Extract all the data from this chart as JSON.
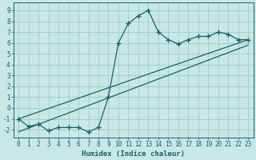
{
  "xlabel": "Humidex (Indice chaleur)",
  "background_color": "#c8e8e8",
  "grid_color": "#aacccc",
  "line_color": "#1a6060",
  "xlim": [
    -0.5,
    23.5
  ],
  "ylim": [
    -2.7,
    9.7
  ],
  "xticks": [
    0,
    1,
    2,
    3,
    4,
    5,
    6,
    7,
    8,
    9,
    10,
    11,
    12,
    13,
    14,
    15,
    16,
    17,
    18,
    19,
    20,
    21,
    22,
    23
  ],
  "yticks": [
    -2,
    -1,
    0,
    1,
    2,
    3,
    4,
    5,
    6,
    7,
    8,
    9
  ],
  "main_x": [
    0,
    1,
    2,
    3,
    4,
    5,
    6,
    7,
    8,
    9,
    10,
    11,
    12,
    13,
    14,
    15,
    16,
    17,
    18,
    19,
    20,
    21,
    22,
    23
  ],
  "main_y": [
    -1.0,
    -1.7,
    -1.5,
    -2.1,
    -1.8,
    -1.8,
    -1.8,
    -2.2,
    -1.8,
    1.0,
    6.0,
    7.8,
    8.5,
    9.0,
    7.0,
    6.3,
    5.9,
    6.3,
    6.6,
    6.6,
    7.0,
    6.8,
    6.3,
    6.3
  ],
  "line1_x": [
    0,
    23
  ],
  "line1_y": [
    -1.0,
    6.3
  ],
  "line2_x": [
    0,
    23
  ],
  "line2_y": [
    -2.2,
    5.8
  ]
}
